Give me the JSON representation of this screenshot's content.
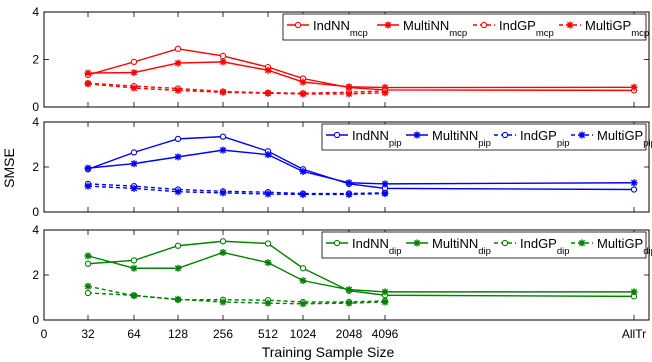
{
  "figure": {
    "ylabel": "SMSE",
    "xlabel": "Training Sample Size"
  },
  "chart_data": [
    {
      "type": "line",
      "color": "#ff0000",
      "ylim": [
        0,
        4
      ],
      "yticks": [
        "0",
        "2",
        "4"
      ],
      "x": [
        "32",
        "64",
        "128",
        "256",
        "512",
        "1024",
        "2048",
        "4096",
        "AllTr"
      ],
      "series": [
        {
          "name": "IndNN",
          "sub": "mcp",
          "style": "solid",
          "marker": "circle",
          "values": [
            1.35,
            1.9,
            2.45,
            2.15,
            1.68,
            1.2,
            0.82,
            0.72,
            0.7
          ]
        },
        {
          "name": "MultiNN",
          "sub": "mcp",
          "style": "solid",
          "marker": "star",
          "values": [
            1.43,
            1.45,
            1.85,
            1.9,
            1.55,
            1.05,
            0.85,
            0.82,
            0.83
          ]
        },
        {
          "name": "IndGP",
          "sub": "mcp",
          "style": "dashed",
          "marker": "circle",
          "values": [
            1.0,
            0.88,
            0.78,
            0.65,
            0.6,
            0.58,
            0.62,
            0.68,
            null
          ]
        },
        {
          "name": "MultiGP",
          "sub": "mcp",
          "style": "dashed",
          "marker": "star",
          "values": [
            0.98,
            0.8,
            0.7,
            0.62,
            0.58,
            0.55,
            0.55,
            0.6,
            null
          ]
        }
      ]
    },
    {
      "type": "line",
      "color": "#0000ff",
      "ylim": [
        0,
        4
      ],
      "yticks": [
        "0",
        "2",
        "4"
      ],
      "x": [
        "32",
        "64",
        "128",
        "256",
        "512",
        "1024",
        "2048",
        "4096",
        "AllTr"
      ],
      "series": [
        {
          "name": "IndNN",
          "sub": "pip",
          "style": "solid",
          "marker": "circle",
          "values": [
            1.9,
            2.65,
            3.25,
            3.35,
            2.7,
            1.9,
            1.25,
            1.05,
            1.0
          ]
        },
        {
          "name": "MultiNN",
          "sub": "pip",
          "style": "solid",
          "marker": "star",
          "values": [
            1.95,
            2.15,
            2.45,
            2.75,
            2.55,
            1.8,
            1.3,
            1.25,
            1.3
          ]
        },
        {
          "name": "IndGP",
          "sub": "pip",
          "style": "dashed",
          "marker": "circle",
          "values": [
            1.25,
            1.15,
            1.0,
            0.92,
            0.88,
            0.82,
            0.82,
            0.85,
            null
          ]
        },
        {
          "name": "MultiGP",
          "sub": "pip",
          "style": "dashed",
          "marker": "star",
          "values": [
            1.15,
            1.05,
            0.9,
            0.85,
            0.8,
            0.78,
            0.78,
            0.82,
            null
          ]
        }
      ]
    },
    {
      "type": "line",
      "color": "#008000",
      "ylim": [
        0,
        4
      ],
      "yticks": [
        "0",
        "2",
        "4"
      ],
      "x": [
        "32",
        "64",
        "128",
        "256",
        "512",
        "1024",
        "2048",
        "4096",
        "AllTr"
      ],
      "series": [
        {
          "name": "IndNN",
          "sub": "dip",
          "style": "solid",
          "marker": "circle",
          "values": [
            2.5,
            2.65,
            3.3,
            3.5,
            3.4,
            2.3,
            1.3,
            1.1,
            1.05
          ]
        },
        {
          "name": "MultiNN",
          "sub": "dip",
          "style": "solid",
          "marker": "star",
          "values": [
            2.85,
            2.3,
            2.3,
            3.0,
            2.55,
            1.75,
            1.35,
            1.25,
            1.25
          ]
        },
        {
          "name": "IndGP",
          "sub": "dip",
          "style": "dashed",
          "marker": "circle",
          "values": [
            1.2,
            1.1,
            0.9,
            0.9,
            0.88,
            0.8,
            0.8,
            0.85,
            null
          ]
        },
        {
          "name": "MultiGP",
          "sub": "dip",
          "style": "dashed",
          "marker": "star",
          "values": [
            1.5,
            1.08,
            0.92,
            0.8,
            0.75,
            0.72,
            0.75,
            0.8,
            null
          ]
        }
      ]
    }
  ],
  "xaxis": {
    "ticks": [
      "0",
      "32",
      "64",
      "128",
      "256",
      "512",
      "1024",
      "2048",
      "4096",
      "AllTr"
    ]
  }
}
